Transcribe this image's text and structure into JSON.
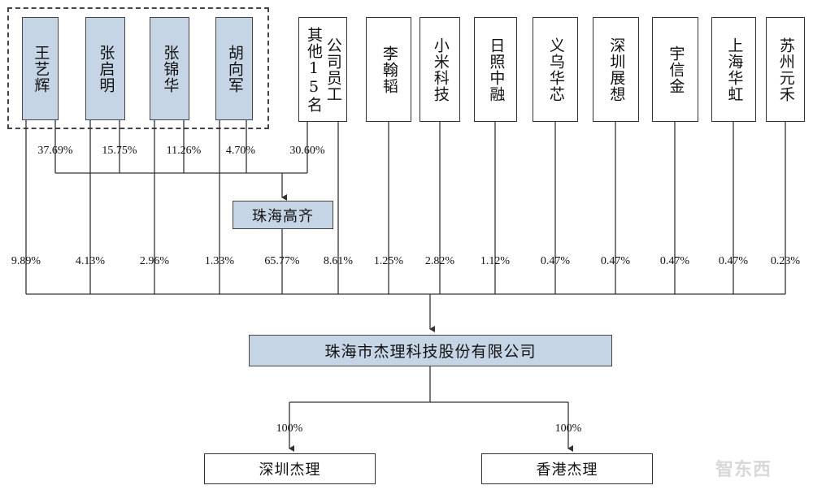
{
  "top_shareholders": [
    {
      "id": "wang",
      "name": "王艺辉",
      "pct_gq": "37.69%",
      "pct_direct": "9.89%"
    },
    {
      "id": "zhangqm",
      "name": "张启明",
      "pct_gq": "15.75%",
      "pct_direct": "4.13%"
    },
    {
      "id": "zhangjh",
      "name": "张锦华",
      "pct_gq": "11.26%",
      "pct_direct": "2.96%"
    },
    {
      "id": "hu",
      "name": "胡向军",
      "pct_gq": "4.70%",
      "pct_direct": "1.33%"
    }
  ],
  "other_employees": {
    "name_col1": "其他15名",
    "name_col2": "公司员工",
    "pct_gq": "30.60%",
    "pct_direct": "8.61%"
  },
  "zhuhai_gaoqi": {
    "name": "珠海高齐",
    "pct": "65.77%"
  },
  "investors": [
    {
      "name": "李翰韬",
      "pct": "1.25%"
    },
    {
      "name": "小米科技",
      "pct": "2.82%"
    },
    {
      "name": "日照中融",
      "pct": "1.12%"
    },
    {
      "name": "义乌华芯",
      "pct": "0.47%"
    },
    {
      "name": "深圳展想",
      "pct": "0.47%"
    },
    {
      "name": "宇信金",
      "pct": "0.47%"
    },
    {
      "name": "上海华虹",
      "pct": "0.47%"
    },
    {
      "name": "苏州元禾",
      "pct": "0.23%"
    }
  ],
  "company": {
    "name": "珠海市杰理科技股份有限公司"
  },
  "subsidiaries": [
    {
      "name": "深圳杰理",
      "pct": "100%"
    },
    {
      "name": "香港杰理",
      "pct": "100%"
    }
  ],
  "watermark": "智东西",
  "colors": {
    "box_fill": "#c5d5e6",
    "line": "#333333"
  }
}
